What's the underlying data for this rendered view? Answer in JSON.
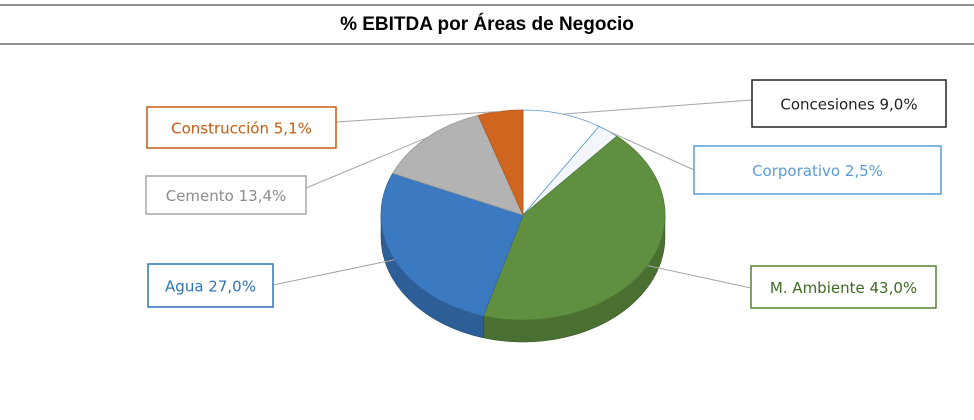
{
  "chart_data": {
    "type": "pie3d",
    "title": "% EBITDA por Áreas de Negocio",
    "categories": [
      "Concesiones",
      "Corporativo",
      "M. Ambiente",
      "Agua",
      "Cemento",
      "Construcción"
    ],
    "values": [
      9.0,
      2.5,
      43.0,
      27.0,
      13.4,
      5.1
    ],
    "value_labels": [
      "9,0%",
      "2,5%",
      "43,0%",
      "27,0%",
      "13,4%",
      "5,1%"
    ],
    "colors": [
      "#ffffff",
      "#f3f7fc",
      "#5f8f3f",
      "#3b79c1",
      "#b3b3b3",
      "#d0651f"
    ]
  }
}
